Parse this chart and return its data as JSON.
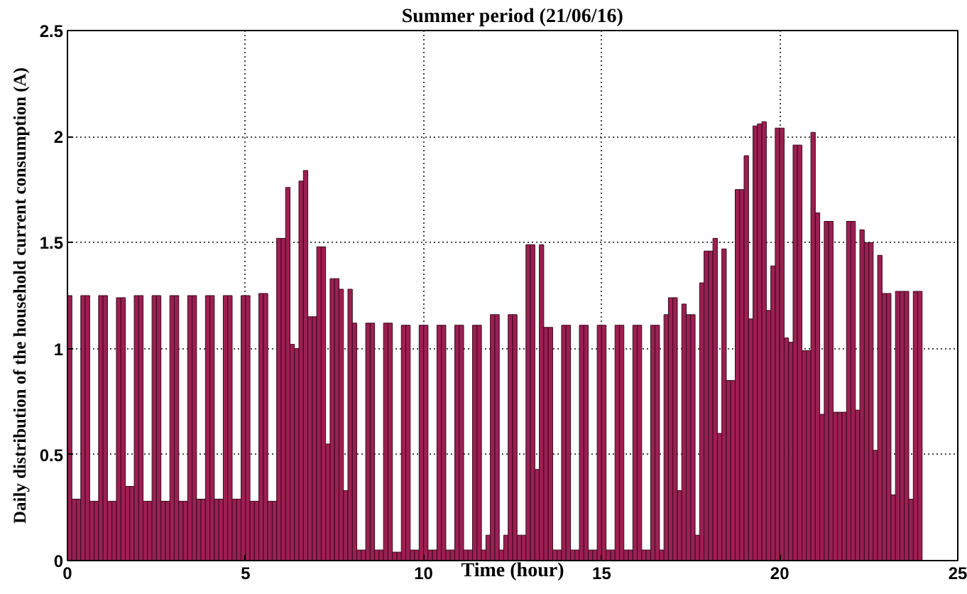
{
  "chart_data": {
    "type": "bar",
    "title": "Summer period (21/06/16)",
    "xlabel": "Time (hour)",
    "ylabel": "Daily distribution of the household current consumption (A)",
    "x": [
      0.0625,
      0.1875,
      0.3125,
      0.4375,
      0.5625,
      0.6875,
      0.8125,
      0.9375,
      1.0625,
      1.1875,
      1.3125,
      1.4375,
      1.5625,
      1.6875,
      1.8125,
      1.9375,
      2.0625,
      2.1875,
      2.3125,
      2.4375,
      2.5625,
      2.6875,
      2.8125,
      2.9375,
      3.0625,
      3.1875,
      3.3125,
      3.4375,
      3.5625,
      3.6875,
      3.8125,
      3.9375,
      4.0625,
      4.1875,
      4.3125,
      4.4375,
      4.5625,
      4.6875,
      4.8125,
      4.9375,
      5.0625,
      5.1875,
      5.3125,
      5.4375,
      5.5625,
      5.6875,
      5.8125,
      5.9375,
      6.0625,
      6.1875,
      6.3125,
      6.4375,
      6.5625,
      6.6875,
      6.8125,
      6.9375,
      7.0625,
      7.1875,
      7.3125,
      7.4375,
      7.5625,
      7.6875,
      7.8125,
      7.9375,
      8.0625,
      8.1875,
      8.3125,
      8.4375,
      8.5625,
      8.6875,
      8.8125,
      8.9375,
      9.0625,
      9.1875,
      9.3125,
      9.4375,
      9.5625,
      9.6875,
      9.8125,
      9.9375,
      10.0625,
      10.1875,
      10.3125,
      10.4375,
      10.5625,
      10.6875,
      10.8125,
      10.9375,
      11.0625,
      11.1875,
      11.3125,
      11.4375,
      11.5625,
      11.6875,
      11.8125,
      11.9375,
      12.0625,
      12.1875,
      12.3125,
      12.4375,
      12.5625,
      12.6875,
      12.8125,
      12.9375,
      13.0625,
      13.1875,
      13.3125,
      13.4375,
      13.5625,
      13.6875,
      13.8125,
      13.9375,
      14.0625,
      14.1875,
      14.3125,
      14.4375,
      14.5625,
      14.6875,
      14.8125,
      14.9375,
      15.0625,
      15.1875,
      15.3125,
      15.4375,
      15.5625,
      15.6875,
      15.8125,
      15.9375,
      16.0625,
      16.1875,
      16.3125,
      16.4375,
      16.5625,
      16.6875,
      16.8125,
      16.9375,
      17.0625,
      17.1875,
      17.3125,
      17.4375,
      17.5625,
      17.6875,
      17.8125,
      17.9375,
      18.0625,
      18.1875,
      18.3125,
      18.4375,
      18.5625,
      18.6875,
      18.8125,
      18.9375,
      19.0625,
      19.1875,
      19.3125,
      19.4375,
      19.5625,
      19.6875,
      19.8125,
      19.9375,
      20.0625,
      20.1875,
      20.3125,
      20.4375,
      20.5625,
      20.6875,
      20.8125,
      20.9375,
      21.0625,
      21.1875,
      21.3125,
      21.4375,
      21.5625,
      21.6875,
      21.8125,
      21.9375,
      22.0625,
      22.1875,
      22.3125,
      22.4375,
      22.5625,
      22.6875,
      22.8125,
      22.9375,
      23.0625,
      23.1875,
      23.3125,
      23.4375,
      23.5625,
      23.6875,
      23.8125,
      23.9375
    ],
    "values": [
      1.25,
      0.29,
      0.29,
      1.25,
      1.25,
      0.28,
      0.28,
      1.25,
      1.25,
      0.28,
      0.28,
      1.24,
      1.24,
      0.35,
      0.35,
      1.25,
      1.25,
      0.28,
      0.28,
      1.25,
      1.25,
      0.28,
      0.28,
      1.25,
      1.25,
      0.28,
      0.28,
      1.25,
      1.25,
      0.29,
      0.29,
      1.25,
      1.25,
      0.29,
      0.29,
      1.25,
      1.25,
      0.29,
      0.29,
      1.25,
      1.25,
      0.28,
      0.28,
      1.26,
      1.26,
      0.28,
      0.28,
      1.52,
      1.52,
      1.76,
      1.02,
      1.0,
      1.79,
      1.84,
      1.15,
      1.15,
      1.48,
      1.48,
      0.55,
      1.33,
      1.33,
      1.28,
      0.33,
      1.28,
      1.12,
      0.05,
      0.05,
      1.12,
      1.12,
      0.05,
      0.05,
      1.12,
      1.12,
      0.04,
      0.04,
      1.11,
      1.11,
      0.05,
      0.05,
      1.11,
      1.11,
      0.05,
      0.05,
      1.11,
      1.11,
      0.05,
      0.05,
      1.11,
      1.11,
      0.05,
      0.05,
      1.11,
      1.11,
      0.05,
      0.12,
      1.16,
      1.16,
      0.05,
      0.12,
      1.16,
      1.16,
      0.12,
      0.12,
      1.49,
      1.49,
      0.43,
      1.49,
      1.1,
      1.1,
      0.05,
      0.05,
      1.11,
      1.11,
      0.05,
      0.05,
      1.11,
      1.11,
      0.05,
      0.05,
      1.11,
      1.11,
      0.05,
      0.05,
      1.11,
      1.11,
      0.05,
      0.05,
      1.11,
      1.11,
      0.05,
      0.05,
      1.11,
      1.11,
      0.05,
      1.16,
      1.24,
      1.24,
      0.33,
      1.21,
      1.16,
      1.16,
      0.12,
      1.31,
      1.46,
      1.46,
      1.52,
      0.6,
      1.47,
      0.85,
      0.85,
      1.75,
      1.75,
      1.91,
      1.14,
      2.05,
      2.06,
      2.07,
      1.18,
      1.39,
      2.04,
      2.04,
      1.05,
      1.03,
      1.96,
      1.96,
      0.99,
      0.99,
      2.02,
      1.64,
      0.69,
      1.6,
      1.6,
      0.7,
      0.7,
      0.7,
      1.6,
      1.6,
      0.71,
      1.56,
      1.5,
      1.5,
      0.52,
      1.44,
      1.26,
      1.26,
      0.31,
      1.27,
      1.27,
      1.27,
      0.29,
      1.27,
      1.27
    ],
    "color": "#9c1f52",
    "xlim": [
      0,
      25
    ],
    "ylim": [
      0,
      2.5
    ],
    "xticks": [
      0,
      5,
      10,
      15,
      20,
      25
    ],
    "yticks": [
      0,
      0.5,
      1,
      1.5,
      2,
      2.5
    ],
    "grid": true
  }
}
